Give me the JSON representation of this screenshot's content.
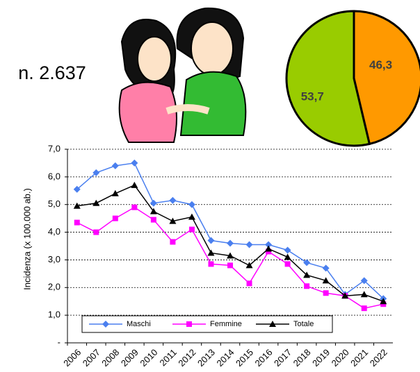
{
  "chart_data": [
    {
      "type": "pie",
      "annotation": "n. 2.637",
      "values": [
        46.3,
        53.7
      ],
      "value_labels": [
        "46,3",
        "53,7"
      ],
      "colors": [
        "#ff9900",
        "#99cc00"
      ]
    },
    {
      "type": "line",
      "y_label": "Incidenza (x 100.000 ab.)",
      "categories": [
        "2006",
        "2007",
        "2008",
        "2009",
        "2010",
        "2011",
        "2012",
        "2013",
        "2014",
        "2015",
        "2016",
        "2017",
        "2018",
        "2019",
        "2020",
        "2021",
        "2022"
      ],
      "series": [
        {
          "name": "Maschi",
          "color": "#4a7fef",
          "marker": "diamond",
          "values": [
            5.55,
            6.15,
            6.4,
            6.5,
            5.05,
            5.15,
            5.0,
            3.7,
            3.6,
            3.55,
            3.55,
            3.35,
            2.9,
            2.7,
            1.75,
            2.25,
            1.6
          ]
        },
        {
          "name": "Femmine",
          "color": "#ff00ff",
          "marker": "square",
          "values": [
            4.35,
            4.0,
            4.5,
            4.9,
            4.45,
            3.65,
            4.1,
            2.85,
            2.8,
            2.15,
            3.3,
            2.85,
            2.05,
            1.8,
            1.7,
            1.25,
            1.4
          ]
        },
        {
          "name": "Totale",
          "color": "#000000",
          "marker": "triangle",
          "values": [
            4.95,
            5.05,
            5.4,
            5.7,
            4.75,
            4.4,
            4.55,
            3.25,
            3.15,
            2.8,
            3.4,
            3.1,
            2.45,
            2.25,
            1.7,
            1.75,
            1.5
          ]
        }
      ],
      "ylim": [
        0,
        7
      ],
      "yticks": [
        {
          "value": 0,
          "label": "-"
        },
        {
          "value": 1,
          "label": "1,0"
        },
        {
          "value": 2,
          "label": "2,0"
        },
        {
          "value": 3,
          "label": "3,0"
        },
        {
          "value": 4,
          "label": "4,0"
        },
        {
          "value": 5,
          "label": "5,0"
        },
        {
          "value": 6,
          "label": "6,0"
        },
        {
          "value": 7,
          "label": "7,0"
        }
      ],
      "grid": true,
      "legend": "lower center"
    }
  ]
}
